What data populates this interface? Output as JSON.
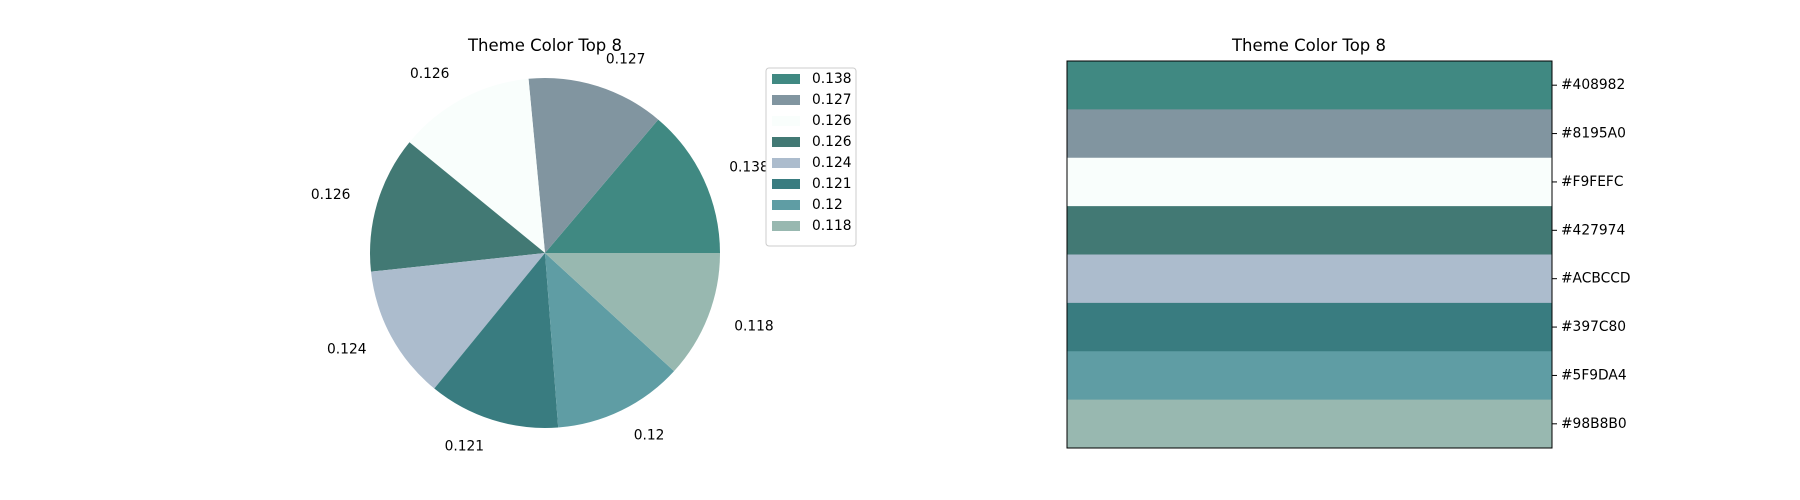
{
  "chart_data": [
    {
      "type": "pie",
      "title": "Theme Color Top 8",
      "slices": [
        {
          "label": "0.138",
          "value": 0.138,
          "color": "#408982"
        },
        {
          "label": "0.127",
          "value": 0.127,
          "color": "#8195A0"
        },
        {
          "label": "0.126",
          "value": 0.126,
          "color": "#F9FEFC"
        },
        {
          "label": "0.126",
          "value": 0.126,
          "color": "#427974"
        },
        {
          "label": "0.124",
          "value": 0.124,
          "color": "#ACBCCD"
        },
        {
          "label": "0.121",
          "value": 0.121,
          "color": "#397C80"
        },
        {
          "label": "0.12",
          "value": 0.12,
          "color": "#5F9DA4"
        },
        {
          "label": "0.118",
          "value": 0.118,
          "color": "#98B8B0"
        }
      ],
      "legend": [
        "0.138",
        "0.127",
        "0.126",
        "0.126",
        "0.124",
        "0.121",
        "0.12",
        "0.118"
      ],
      "legend_placement": "right of pie"
    },
    {
      "type": "bar",
      "title": "Theme Color Top 8",
      "categories": [
        "#408982",
        "#8195A0",
        "#F9FEFC",
        "#427974",
        "#ACBCCD",
        "#397C80",
        "#5F9DA4",
        "#98B8B0"
      ],
      "colors": [
        "#408982",
        "#8195A0",
        "#F9FEFC",
        "#427974",
        "#ACBCCD",
        "#397C80",
        "#5F9DA4",
        "#98B8B0"
      ],
      "ytick_side": "right"
    }
  ]
}
